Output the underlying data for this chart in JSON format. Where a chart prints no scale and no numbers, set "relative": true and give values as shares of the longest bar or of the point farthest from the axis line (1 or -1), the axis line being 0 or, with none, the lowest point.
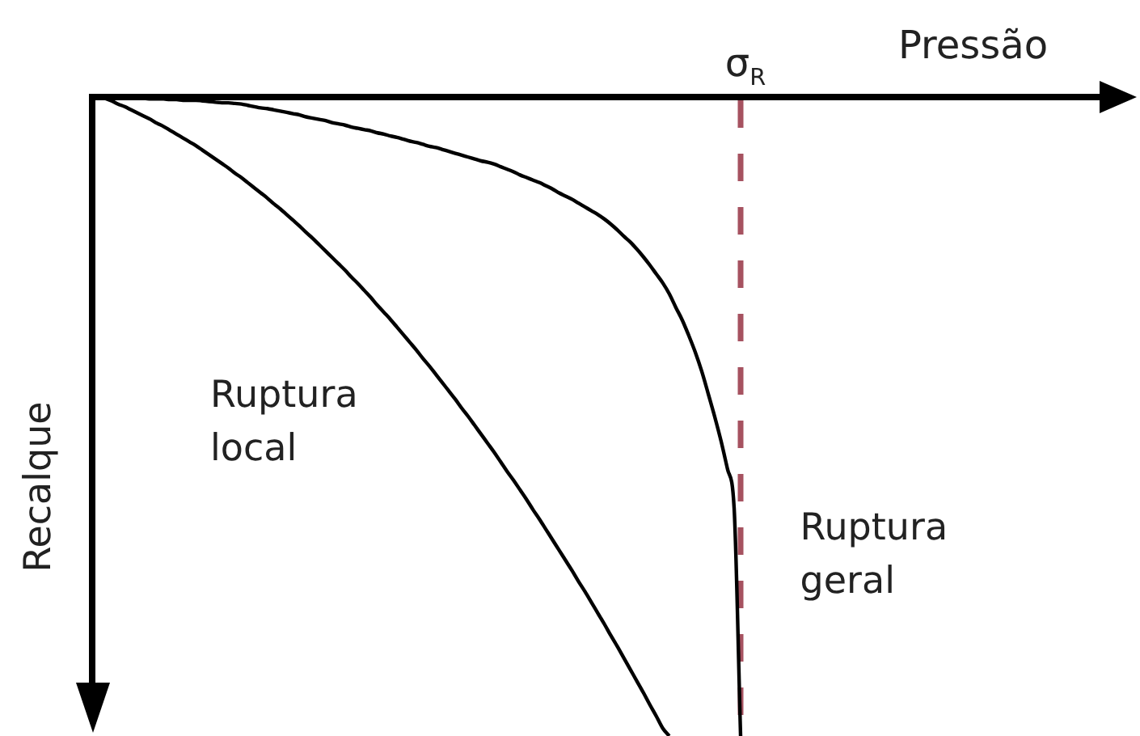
{
  "chart_data": {
    "type": "line",
    "relative": true,
    "xlabel": "Pressão",
    "ylabel": "Recalque",
    "categories": [
      null,
      null,
      null,
      null,
      null,
      null,
      null,
      null,
      null,
      null,
      null,
      null,
      null,
      null,
      null,
      null,
      null,
      null,
      null,
      null,
      null,
      null,
      null,
      null,
      null,
      null,
      null,
      null,
      null,
      null,
      null,
      null,
      null,
      null,
      null,
      null,
      null,
      null,
      null,
      null,
      null,
      null,
      null,
      null,
      null,
      null,
      null,
      null,
      null,
      null,
      null,
      null,
      null,
      null,
      null,
      null,
      null,
      null,
      null,
      null,
      null,
      null,
      null,
      null,
      null,
      null,
      null,
      null,
      null,
      null,
      null,
      null,
      null,
      null,
      null,
      null,
      null,
      null,
      null,
      null,
      null,
      null,
      null,
      null,
      null,
      null,
      null,
      null,
      null,
      null,
      null,
      null,
      null,
      null,
      null,
      null,
      null,
      null,
      null,
      null,
      null
    ],
    "series": [
      {
        "name": "Ruptura local",
        "color": "#000000",
        "values": [
          0,
          0,
          -0.002,
          -0.006,
          -0.011,
          -0.015,
          -0.02,
          -0.025,
          -0.03,
          -0.035,
          -0.041,
          -0.046,
          -0.052,
          -0.058,
          -0.064,
          -0.07,
          -0.076,
          -0.083,
          -0.09,
          -0.097,
          -0.104,
          -0.111,
          -0.119,
          -0.126,
          -0.134,
          -0.142,
          -0.15,
          -0.158,
          -0.167,
          -0.175,
          -0.184,
          -0.193,
          -0.202,
          -0.212,
          -0.221,
          -0.231,
          -0.241,
          -0.251,
          -0.261,
          -0.271,
          -0.282,
          -0.292,
          -0.303,
          -0.314,
          -0.326,
          -0.337,
          -0.348,
          -0.36,
          -0.372,
          -0.384,
          -0.396,
          -0.409,
          -0.421,
          -0.434,
          -0.447,
          -0.46,
          -0.473,
          -0.487,
          -0.5,
          -0.514,
          -0.528,
          -0.542,
          -0.556,
          -0.571,
          -0.586,
          -0.6,
          -0.615,
          -0.63,
          -0.646,
          -0.661,
          -0.677,
          -0.693,
          -0.709,
          -0.725,
          -0.741,
          -0.758,
          -0.774,
          -0.791,
          -0.808,
          -0.825,
          -0.843,
          -0.86,
          -0.878,
          -0.896,
          -0.914,
          -0.932,
          -0.951,
          -0.969,
          -0.988,
          -1,
          null,
          null,
          null,
          null,
          null,
          null,
          null,
          null,
          null,
          null,
          null
        ]
      },
      {
        "name": "Ruptura geral",
        "color": "#000000",
        "values": [
          0,
          0,
          -0.001,
          -0.001,
          -0.001,
          -0.001,
          -0.002,
          -0.002,
          -0.002,
          -0.003,
          -0.003,
          -0.003,
          -0.004,
          -0.004,
          -0.005,
          -0.005,
          -0.005,
          -0.006,
          -0.007,
          -0.008,
          -0.009,
          -0.009,
          -0.01,
          -0.011,
          -0.013,
          -0.015,
          -0.017,
          -0.018,
          -0.02,
          -0.022,
          -0.024,
          -0.026,
          -0.028,
          -0.031,
          -0.033,
          -0.035,
          -0.037,
          -0.04,
          -0.042,
          -0.044,
          -0.047,
          -0.049,
          -0.051,
          -0.053,
          -0.056,
          -0.058,
          -0.061,
          -0.063,
          -0.066,
          -0.069,
          -0.071,
          -0.074,
          -0.077,
          -0.079,
          -0.082,
          -0.085,
          -0.088,
          -0.091,
          -0.094,
          -0.097,
          -0.1,
          -0.102,
          -0.105,
          -0.109,
          -0.113,
          -0.117,
          -0.122,
          -0.126,
          -0.13,
          -0.134,
          -0.139,
          -0.144,
          -0.15,
          -0.155,
          -0.16,
          -0.166,
          -0.172,
          -0.178,
          -0.184,
          -0.191,
          -0.199,
          -0.208,
          -0.218,
          -0.227,
          -0.238,
          -0.25,
          -0.263,
          -0.277,
          -0.291,
          -0.308,
          -0.329,
          -0.349,
          -0.373,
          -0.399,
          -0.429,
          -0.464,
          -0.5,
          -0.539,
          -0.583,
          -0.643,
          -1
        ]
      }
    ],
    "ref_lines": [
      {
        "axis": "x",
        "label": "σ$_{R}$",
        "color": "#a65260",
        "line_style": "dashed"
      }
    ]
  }
}
